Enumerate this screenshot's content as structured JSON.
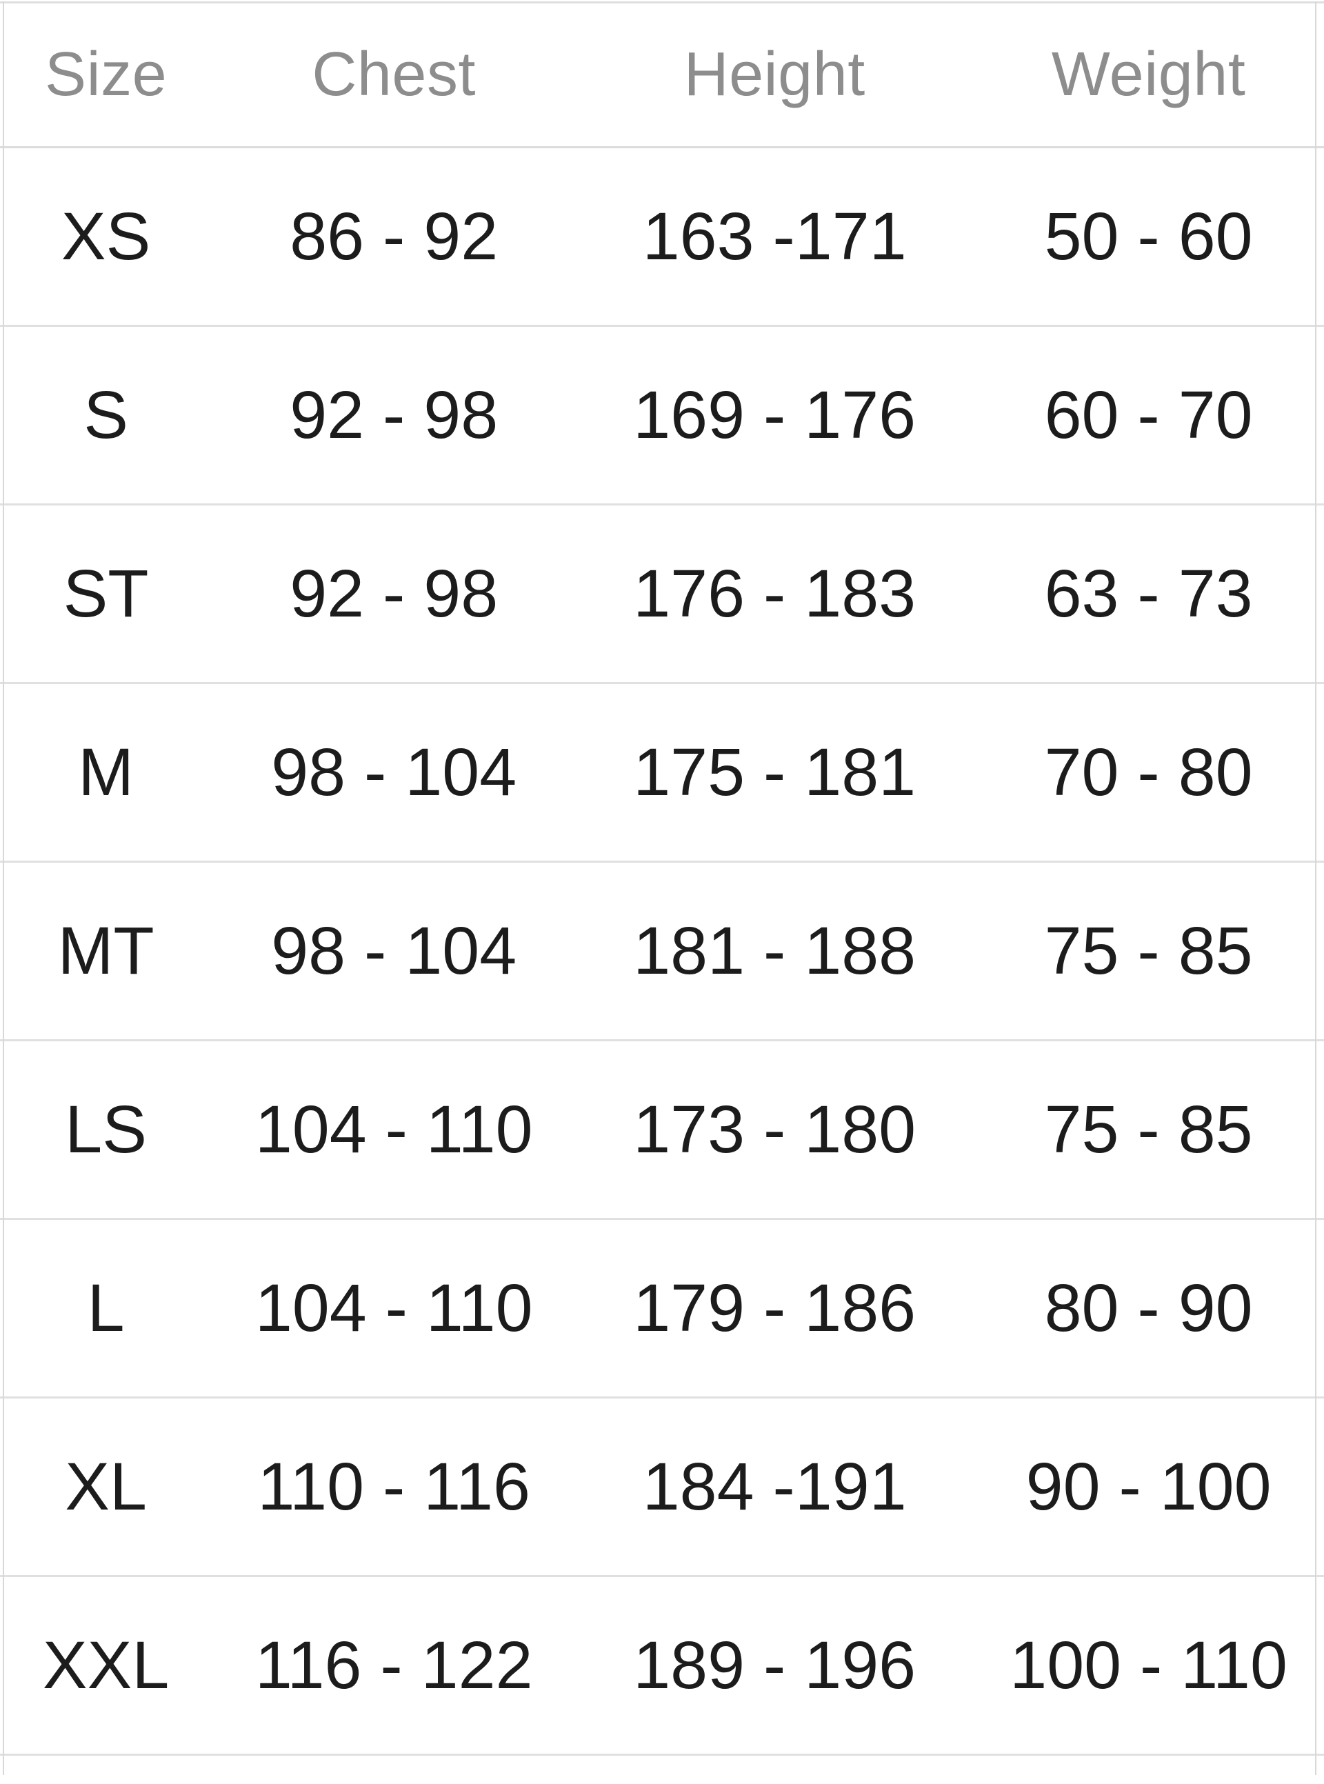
{
  "size_chart": {
    "columns": [
      "Size",
      "Chest",
      "Height",
      "Weight"
    ],
    "rows": [
      [
        "XS",
        "86 - 92",
        "163 -171",
        "50 - 60"
      ],
      [
        "S",
        "92 - 98",
        "169 - 176",
        "60 - 70"
      ],
      [
        "ST",
        "92 - 98",
        "176 - 183",
        "63 - 73"
      ],
      [
        "M",
        "98 - 104",
        "175 - 181",
        "70 - 80"
      ],
      [
        "MT",
        "98 - 104",
        "181 - 188",
        "75 - 85"
      ],
      [
        "LS",
        "104 - 110",
        "173 - 180",
        "75 - 85"
      ],
      [
        "L",
        "104 - 110",
        "179 - 186",
        "80 - 90"
      ],
      [
        "XL",
        "110 - 116",
        "184 -191",
        "90 - 100"
      ],
      [
        "XXL",
        "116 - 122",
        "189 - 196",
        "100 - 110"
      ]
    ],
    "colors": {
      "header_text": "#8d8d8d",
      "body_text": "#1c1c1c",
      "row_separator": "#e0e0e0",
      "outer_border": "#d8d8d8",
      "background": "#ffffff"
    }
  }
}
